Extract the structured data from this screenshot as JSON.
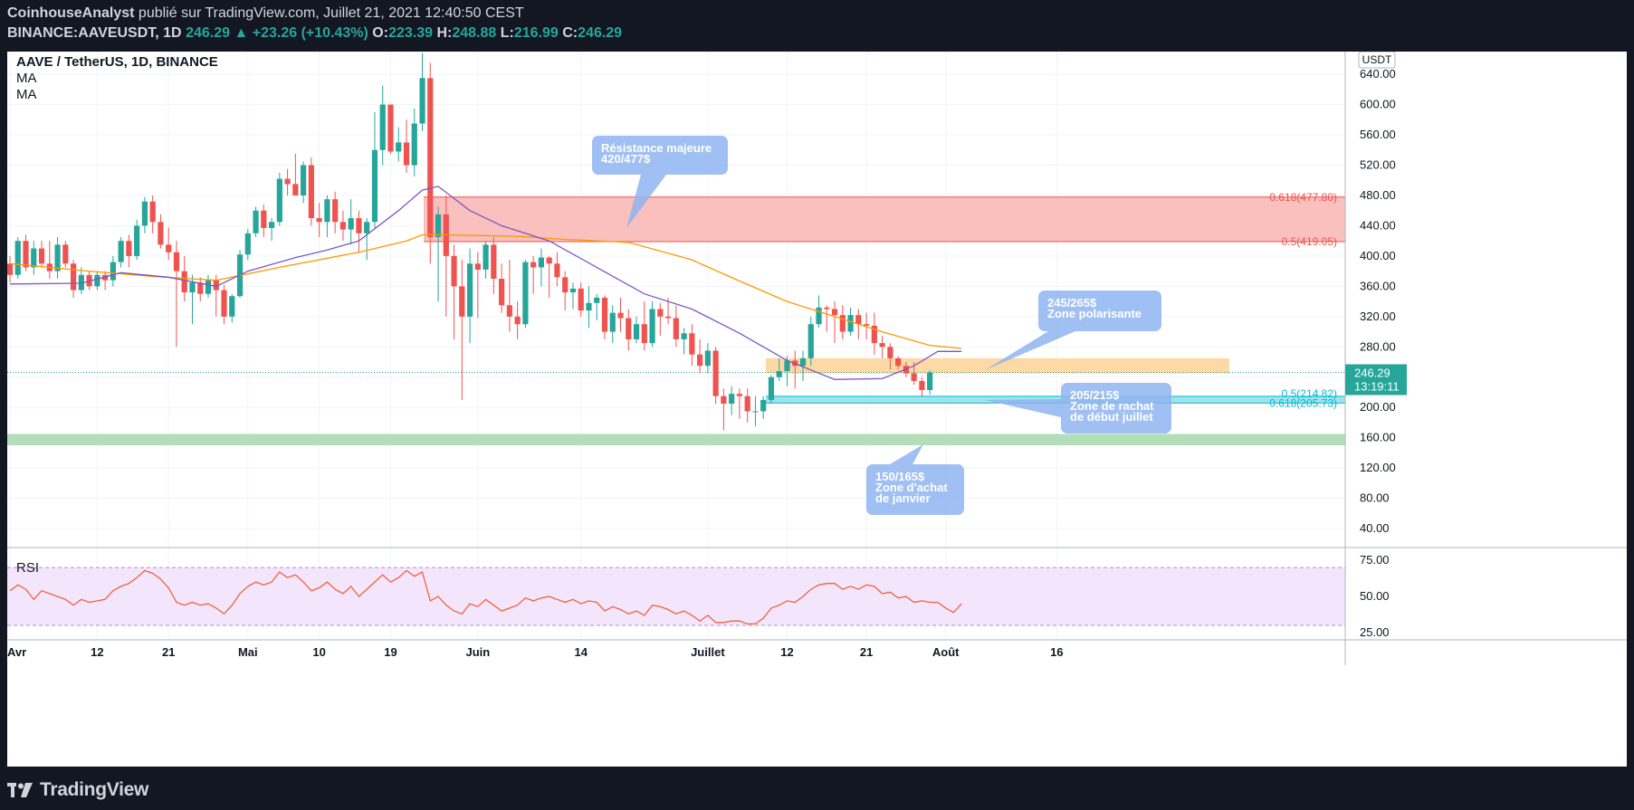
{
  "header": {
    "author": "CoinhouseAnalyst",
    "published_text": "publié sur TradingView.com, Juillet 21, 2021 12:40:50 CEST",
    "symbol": "BINANCE:AAVEUSDT, 1D",
    "last": "246.29",
    "change": "+23.26 (+10.43%)",
    "o_label": "O:",
    "o": "223.39",
    "h_label": "H:",
    "h": "248.88",
    "l_label": "L:",
    "l": "216.99",
    "c_label": "C:",
    "c": "246.29"
  },
  "legend": {
    "title": "AAVE / TetherUS, 1D, BINANCE",
    "ma1": "MA",
    "ma2": "MA",
    "rsi": "RSI"
  },
  "price_axis": {
    "currency": "USDT",
    "ticks": [
      "640.00",
      "600.00",
      "560.00",
      "520.00",
      "480.00",
      "440.00",
      "400.00",
      "360.00",
      "320.00",
      "280.00",
      "240.00",
      "200.00",
      "160.00",
      "120.00",
      "80.00",
      "40.00"
    ],
    "last_price": "246.29",
    "countdown": "13:19:11"
  },
  "rsi_axis": {
    "ticks": [
      "75.00",
      "50.00",
      "25.00"
    ]
  },
  "time_axis": {
    "labels": [
      "Avr",
      "12",
      "21",
      "Mai",
      "10",
      "19",
      "Juin",
      "14",
      "Juillet",
      "12",
      "21",
      "Août",
      "16"
    ]
  },
  "fib_labels": {
    "f618_top": "0.618(477.80)",
    "f5_top": "0.5(419.05)",
    "f5_bot": "0.5(214.82)",
    "f618_bot": "0.618(205.73)"
  },
  "callouts": {
    "resistance": [
      "Résistance majeure",
      "420/477$"
    ],
    "polarisante": [
      "245/265$",
      "Zone polarisante"
    ],
    "rachat": [
      "205/215$",
      "Zone de rachat",
      "de début juillet"
    ],
    "achat": [
      "150/165$",
      "Zone d'achat",
      "de janvier"
    ]
  },
  "colors": {
    "up": "#26a69a",
    "down": "#ef5350",
    "ma_fast": "#7e57c2",
    "ma_slow": "#ff9800",
    "rsi_line": "#f0643c",
    "resistance_zone": "#f9c0bd",
    "polar_zone": "#fcd9a5",
    "rachat_zone": "#9fe4ea",
    "achat_zone": "#b4deb9"
  },
  "footer": {
    "brand": "TradingView"
  },
  "chart_data": {
    "type": "candlestick",
    "title": "AAVE / TetherUS, 1D, BINANCE",
    "x_start": "2021-04-01",
    "x_end": "2021-07-21",
    "ylim": [
      15,
      670
    ],
    "candles": [
      [
        390,
        400,
        365,
        375
      ],
      [
        375,
        425,
        370,
        420
      ],
      [
        420,
        428,
        380,
        385
      ],
      [
        385,
        420,
        375,
        410
      ],
      [
        410,
        420,
        385,
        390
      ],
      [
        390,
        420,
        370,
        380
      ],
      [
        380,
        425,
        370,
        415
      ],
      [
        415,
        420,
        385,
        390
      ],
      [
        390,
        395,
        345,
        355
      ],
      [
        355,
        385,
        350,
        375
      ],
      [
        375,
        380,
        355,
        360
      ],
      [
        360,
        380,
        355,
        375
      ],
      [
        375,
        380,
        355,
        368
      ],
      [
        368,
        400,
        360,
        392
      ],
      [
        392,
        425,
        385,
        420
      ],
      [
        420,
        428,
        385,
        400
      ],
      [
        400,
        448,
        395,
        440
      ],
      [
        440,
        478,
        430,
        472
      ],
      [
        472,
        480,
        430,
        445
      ],
      [
        445,
        455,
        410,
        415
      ],
      [
        415,
        438,
        395,
        405
      ],
      [
        405,
        420,
        280,
        380
      ],
      [
        380,
        400,
        340,
        352
      ],
      [
        352,
        375,
        310,
        365
      ],
      [
        365,
        372,
        340,
        350
      ],
      [
        350,
        375,
        345,
        368
      ],
      [
        368,
        375,
        320,
        355
      ],
      [
        355,
        362,
        310,
        320
      ],
      [
        320,
        350,
        312,
        347
      ],
      [
        347,
        408,
        345,
        402
      ],
      [
        402,
        436,
        395,
        430
      ],
      [
        430,
        465,
        425,
        460
      ],
      [
        460,
        468,
        425,
        437
      ],
      [
        437,
        450,
        420,
        445
      ],
      [
        445,
        510,
        440,
        502
      ],
      [
        502,
        515,
        480,
        495
      ],
      [
        495,
        535,
        485,
        480
      ],
      [
        480,
        525,
        470,
        520
      ],
      [
        520,
        530,
        440,
        450
      ],
      [
        450,
        470,
        425,
        445
      ],
      [
        445,
        480,
        425,
        475
      ],
      [
        475,
        485,
        430,
        445
      ],
      [
        445,
        460,
        420,
        435
      ],
      [
        435,
        475,
        415,
        450
      ],
      [
        450,
        460,
        405,
        430
      ],
      [
        430,
        450,
        395,
        445
      ],
      [
        445,
        590,
        435,
        540
      ],
      [
        540,
        625,
        520,
        600
      ],
      [
        600,
        600,
        535,
        538
      ],
      [
        538,
        570,
        525,
        550
      ],
      [
        550,
        580,
        510,
        520
      ],
      [
        520,
        595,
        505,
        575
      ],
      [
        575,
        668,
        565,
        635
      ],
      [
        635,
        655,
        390,
        425
      ],
      [
        425,
        465,
        340,
        455
      ],
      [
        455,
        480,
        320,
        400
      ],
      [
        400,
        415,
        290,
        360
      ],
      [
        360,
        395,
        210,
        320
      ],
      [
        320,
        410,
        285,
        390
      ],
      [
        390,
        405,
        318,
        382
      ],
      [
        382,
        420,
        370,
        415
      ],
      [
        415,
        425,
        350,
        370
      ],
      [
        370,
        390,
        325,
        335
      ],
      [
        335,
        395,
        300,
        320
      ],
      [
        320,
        340,
        290,
        310
      ],
      [
        310,
        395,
        305,
        392
      ],
      [
        392,
        400,
        350,
        385
      ],
      [
        385,
        410,
        360,
        398
      ],
      [
        398,
        400,
        345,
        390
      ],
      [
        390,
        405,
        360,
        372
      ],
      [
        372,
        380,
        328,
        352
      ],
      [
        352,
        365,
        330,
        357
      ],
      [
        357,
        365,
        320,
        328
      ],
      [
        328,
        360,
        305,
        338
      ],
      [
        338,
        350,
        315,
        345
      ],
      [
        345,
        348,
        290,
        300
      ],
      [
        300,
        335,
        285,
        325
      ],
      [
        325,
        345,
        300,
        318
      ],
      [
        318,
        330,
        275,
        290
      ],
      [
        290,
        320,
        285,
        310
      ],
      [
        310,
        340,
        275,
        285
      ],
      [
        285,
        340,
        280,
        330
      ],
      [
        330,
        338,
        295,
        320
      ],
      [
        320,
        345,
        310,
        318
      ],
      [
        318,
        335,
        280,
        290
      ],
      [
        290,
        305,
        270,
        298
      ],
      [
        298,
        310,
        255,
        270
      ],
      [
        270,
        290,
        245,
        255
      ],
      [
        255,
        285,
        245,
        275
      ],
      [
        275,
        280,
        205,
        215
      ],
      [
        215,
        225,
        170,
        205
      ],
      [
        205,
        228,
        190,
        218
      ],
      [
        218,
        225,
        185,
        215
      ],
      [
        215,
        225,
        180,
        195
      ],
      [
        195,
        215,
        175,
        195
      ],
      [
        195,
        215,
        185,
        210
      ],
      [
        210,
        243,
        205,
        240
      ],
      [
        240,
        265,
        235,
        248
      ],
      [
        248,
        268,
        228,
        262
      ],
      [
        262,
        275,
        225,
        255
      ],
      [
        255,
        275,
        235,
        265
      ],
      [
        265,
        320,
        255,
        310
      ],
      [
        310,
        348,
        305,
        332
      ],
      [
        332,
        335,
        300,
        330
      ],
      [
        330,
        340,
        285,
        322
      ],
      [
        322,
        335,
        290,
        300
      ],
      [
        300,
        332,
        295,
        322
      ],
      [
        322,
        330,
        290,
        310
      ],
      [
        310,
        325,
        290,
        308
      ],
      [
        308,
        325,
        270,
        285
      ],
      [
        285,
        295,
        265,
        280
      ],
      [
        280,
        285,
        250,
        265
      ],
      [
        265,
        268,
        250,
        255
      ],
      [
        255,
        260,
        240,
        245
      ],
      [
        245,
        260,
        230,
        235
      ],
      [
        235,
        240,
        215,
        223
      ],
      [
        223,
        249,
        217,
        246
      ]
    ],
    "ma_fast": [
      [
        0,
        363
      ],
      [
        9,
        364
      ],
      [
        14,
        378
      ],
      [
        20,
        372
      ],
      [
        26,
        360
      ],
      [
        30,
        380
      ],
      [
        36,
        398
      ],
      [
        40,
        408
      ],
      [
        44,
        420
      ],
      [
        49,
        460
      ],
      [
        52,
        487
      ],
      [
        54,
        492
      ],
      [
        58,
        460
      ],
      [
        62,
        440
      ],
      [
        68,
        420
      ],
      [
        74,
        385
      ],
      [
        80,
        350
      ],
      [
        86,
        330
      ],
      [
        92,
        298
      ],
      [
        98,
        262
      ],
      [
        104,
        237
      ],
      [
        110,
        238
      ],
      [
        114,
        255
      ],
      [
        117,
        274
      ],
      [
        120,
        274
      ]
    ],
    "ma_slow": [
      [
        0,
        390
      ],
      [
        10,
        380
      ],
      [
        18,
        373
      ],
      [
        26,
        368
      ],
      [
        34,
        385
      ],
      [
        44,
        405
      ],
      [
        50,
        420
      ],
      [
        52,
        428
      ],
      [
        55,
        428
      ],
      [
        64,
        426
      ],
      [
        70,
        422
      ],
      [
        78,
        418
      ],
      [
        86,
        395
      ],
      [
        92,
        367
      ],
      [
        98,
        340
      ],
      [
        104,
        320
      ],
      [
        110,
        300
      ],
      [
        116,
        282
      ],
      [
        120,
        278
      ]
    ],
    "rsi": [
      [
        0,
        54
      ],
      [
        1,
        58
      ],
      [
        2,
        55
      ],
      [
        3,
        48
      ],
      [
        4,
        54
      ],
      [
        5,
        52
      ],
      [
        6,
        50
      ],
      [
        7,
        48
      ],
      [
        8,
        44
      ],
      [
        9,
        48
      ],
      [
        10,
        46
      ],
      [
        11,
        47
      ],
      [
        12,
        48
      ],
      [
        13,
        54
      ],
      [
        14,
        57
      ],
      [
        15,
        59
      ],
      [
        16,
        63
      ],
      [
        17,
        68
      ],
      [
        18,
        66
      ],
      [
        19,
        62
      ],
      [
        20,
        56
      ],
      [
        21,
        46
      ],
      [
        22,
        44
      ],
      [
        23,
        46
      ],
      [
        24,
        44
      ],
      [
        25,
        45
      ],
      [
        26,
        42
      ],
      [
        27,
        38
      ],
      [
        28,
        44
      ],
      [
        29,
        52
      ],
      [
        30,
        57
      ],
      [
        31,
        60
      ],
      [
        32,
        58
      ],
      [
        33,
        60
      ],
      [
        34,
        67
      ],
      [
        35,
        63
      ],
      [
        36,
        65
      ],
      [
        37,
        60
      ],
      [
        38,
        54
      ],
      [
        39,
        56
      ],
      [
        40,
        60
      ],
      [
        41,
        55
      ],
      [
        42,
        52
      ],
      [
        43,
        57
      ],
      [
        44,
        50
      ],
      [
        45,
        55
      ],
      [
        46,
        60
      ],
      [
        47,
        65
      ],
      [
        48,
        60
      ],
      [
        49,
        63
      ],
      [
        50,
        68
      ],
      [
        51,
        64
      ],
      [
        52,
        67
      ],
      [
        53,
        47
      ],
      [
        54,
        50
      ],
      [
        55,
        44
      ],
      [
        56,
        40
      ],
      [
        57,
        38
      ],
      [
        58,
        45
      ],
      [
        59,
        43
      ],
      [
        60,
        48
      ],
      [
        61,
        44
      ],
      [
        62,
        40
      ],
      [
        63,
        42
      ],
      [
        64,
        44
      ],
      [
        65,
        49
      ],
      [
        66,
        47
      ],
      [
        67,
        49
      ],
      [
        68,
        50
      ],
      [
        69,
        48
      ],
      [
        70,
        46
      ],
      [
        71,
        48
      ],
      [
        72,
        45
      ],
      [
        73,
        47
      ],
      [
        74,
        46
      ],
      [
        75,
        40
      ],
      [
        76,
        43
      ],
      [
        77,
        41
      ],
      [
        78,
        38
      ],
      [
        79,
        40
      ],
      [
        80,
        37
      ],
      [
        81,
        44
      ],
      [
        82,
        43
      ],
      [
        83,
        41
      ],
      [
        84,
        38
      ],
      [
        85,
        40
      ],
      [
        86,
        37
      ],
      [
        87,
        33
      ],
      [
        88,
        37
      ],
      [
        89,
        32
      ],
      [
        90,
        32
      ],
      [
        91,
        33
      ],
      [
        92,
        33
      ],
      [
        93,
        31
      ],
      [
        94,
        31
      ],
      [
        95,
        35
      ],
      [
        96,
        42
      ],
      [
        97,
        44
      ],
      [
        98,
        47
      ],
      [
        99,
        46
      ],
      [
        100,
        50
      ],
      [
        101,
        55
      ],
      [
        102,
        58
      ],
      [
        103,
        59
      ],
      [
        104,
        59
      ],
      [
        105,
        55
      ],
      [
        106,
        57
      ],
      [
        107,
        55
      ],
      [
        108,
        58
      ],
      [
        109,
        57
      ],
      [
        110,
        52
      ],
      [
        111,
        53
      ],
      [
        112,
        49
      ],
      [
        113,
        50
      ],
      [
        114,
        46
      ],
      [
        115,
        47
      ],
      [
        116,
        46
      ],
      [
        117,
        46
      ],
      [
        118,
        42
      ],
      [
        119,
        39
      ],
      [
        120,
        45
      ]
    ],
    "rsi_ylim": [
      20,
      82
    ],
    "zones": {
      "resistance": [
        419.05,
        477.8
      ],
      "polarisante": [
        245,
        265
      ],
      "rachat": [
        205.73,
        214.82
      ],
      "achat": [
        150,
        165
      ]
    },
    "last_price": 246.29
  }
}
